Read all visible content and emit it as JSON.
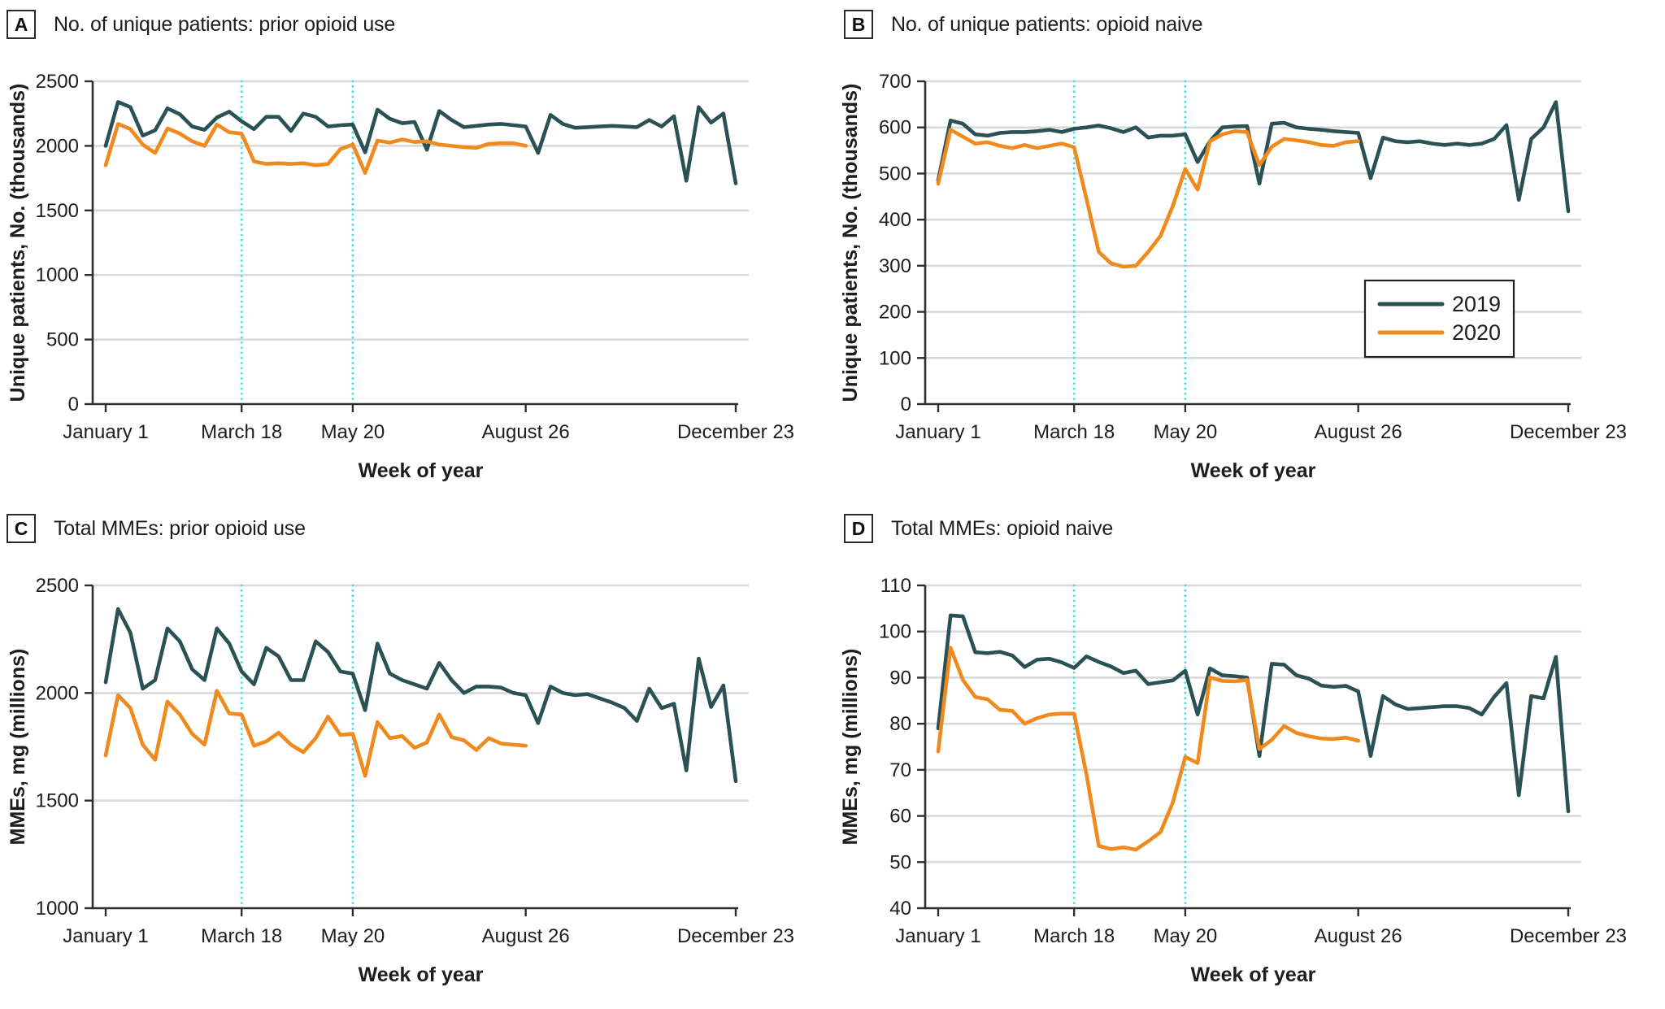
{
  "figure": {
    "x_axis_label": "Week of year",
    "legend": {
      "position": "panel-B-lower-right",
      "entries": [
        {
          "label": "2019",
          "color": "#2A5154"
        },
        {
          "label": "2020",
          "color": "#F08A1E"
        }
      ]
    },
    "colors": {
      "series_2019": "#2A5154",
      "series_2020": "#F08A1E",
      "event_vline": "#44E3E3",
      "gridline": "#D8D8D8",
      "axis": "#2F2F2F",
      "text": "#1D1D1D"
    }
  },
  "chart_data": [
    {
      "type": "line",
      "panel_label": "A",
      "title": "No. of unique patients: prior opioid use",
      "xlabel": "Week of year",
      "ylabel": "Unique patients, No. (thousands)",
      "ylim": [
        0,
        2500
      ],
      "y_ticks": [
        0,
        500,
        1000,
        1500,
        2000,
        2500
      ],
      "x_ticks": [
        {
          "week": 1,
          "label": "January 1"
        },
        {
          "week": 12,
          "label": "March 18"
        },
        {
          "week": 21,
          "label": "May 20"
        },
        {
          "week": 35,
          "label": "August 26"
        },
        {
          "week": 52,
          "label": "December 23"
        }
      ],
      "vlines_weeks": [
        12,
        21
      ],
      "grid": true,
      "legend": false,
      "series": [
        {
          "name": "2019",
          "color": "#2A5154",
          "values": [
            2000,
            2340,
            2300,
            2080,
            2120,
            2290,
            2245,
            2150,
            2125,
            2220,
            2265,
            2190,
            2130,
            2225,
            2225,
            2115,
            2250,
            2225,
            2150,
            2160,
            2165,
            1950,
            2280,
            2210,
            2175,
            2185,
            1970,
            2270,
            2200,
            2145,
            2155,
            2165,
            2170,
            2160,
            2150,
            1945,
            2240,
            2170,
            2140,
            2145,
            2150,
            2155,
            2150,
            2145,
            2200,
            2150,
            2230,
            1730,
            2300,
            2180,
            2250,
            1710
          ]
        },
        {
          "name": "2020",
          "color": "#F08A1E",
          "values": [
            1850,
            2170,
            2130,
            2010,
            1945,
            2135,
            2095,
            2035,
            2000,
            2165,
            2105,
            2095,
            1880,
            1860,
            1865,
            1860,
            1865,
            1850,
            1860,
            1975,
            2010,
            1790,
            2040,
            2025,
            2050,
            2030,
            2035,
            2010,
            2000,
            1990,
            1985,
            2015,
            2020,
            2020,
            2000
          ]
        }
      ]
    },
    {
      "type": "line",
      "panel_label": "B",
      "title": "No. of unique patients: opioid naive",
      "xlabel": "Week of year",
      "ylabel": "Unique patients, No. (thousands)",
      "ylim": [
        0,
        700
      ],
      "y_ticks": [
        0,
        100,
        200,
        300,
        400,
        500,
        600,
        700
      ],
      "x_ticks": [
        {
          "week": 1,
          "label": "January 1"
        },
        {
          "week": 12,
          "label": "March 18"
        },
        {
          "week": 21,
          "label": "May 20"
        },
        {
          "week": 35,
          "label": "August 26"
        },
        {
          "week": 52,
          "label": "December 23"
        }
      ],
      "vlines_weeks": [
        12,
        21
      ],
      "grid": true,
      "legend": true,
      "series": [
        {
          "name": "2019",
          "color": "#2A5154",
          "values": [
            485,
            615,
            608,
            585,
            582,
            588,
            590,
            590,
            592,
            595,
            590,
            597,
            600,
            604,
            598,
            590,
            600,
            578,
            582,
            582,
            585,
            525,
            570,
            600,
            602,
            603,
            478,
            608,
            610,
            600,
            597,
            595,
            592,
            590,
            588,
            490,
            578,
            570,
            568,
            570,
            565,
            562,
            565,
            562,
            565,
            575,
            605,
            443,
            575,
            600,
            655,
            418
          ]
        },
        {
          "name": "2020",
          "color": "#F08A1E",
          "values": [
            478,
            595,
            580,
            565,
            568,
            560,
            555,
            562,
            555,
            560,
            565,
            557,
            445,
            330,
            305,
            298,
            300,
            330,
            365,
            430,
            510,
            465,
            570,
            585,
            592,
            590,
            518,
            558,
            575,
            572,
            568,
            562,
            560,
            568,
            570
          ]
        }
      ]
    },
    {
      "type": "line",
      "panel_label": "C",
      "title": "Total MMEs: prior opioid use",
      "xlabel": "Week of year",
      "ylabel": "MMEs, mg (millions)",
      "ylim": [
        1000,
        2500
      ],
      "y_ticks": [
        1000,
        1500,
        2000,
        2500
      ],
      "x_ticks": [
        {
          "week": 1,
          "label": "January 1"
        },
        {
          "week": 12,
          "label": "March 18"
        },
        {
          "week": 21,
          "label": "May 20"
        },
        {
          "week": 35,
          "label": "August 26"
        },
        {
          "week": 52,
          "label": "December 23"
        }
      ],
      "vlines_weeks": [
        12,
        21
      ],
      "grid": true,
      "legend": false,
      "series": [
        {
          "name": "2019",
          "color": "#2A5154",
          "values": [
            2050,
            2390,
            2280,
            2020,
            2060,
            2300,
            2240,
            2110,
            2060,
            2300,
            2230,
            2100,
            2040,
            2210,
            2170,
            2060,
            2060,
            2240,
            2190,
            2100,
            2090,
            1920,
            2230,
            2090,
            2060,
            2040,
            2020,
            2140,
            2060,
            2000,
            2030,
            2030,
            2025,
            2000,
            1990,
            1860,
            2030,
            2000,
            1990,
            1995,
            1975,
            1955,
            1930,
            1870,
            2020,
            1930,
            1950,
            1640,
            2160,
            1935,
            2035,
            1590
          ]
        },
        {
          "name": "2020",
          "color": "#F08A1E",
          "values": [
            1710,
            1990,
            1930,
            1760,
            1690,
            1960,
            1900,
            1810,
            1760,
            2010,
            1905,
            1900,
            1755,
            1775,
            1815,
            1760,
            1725,
            1790,
            1890,
            1805,
            1810,
            1615,
            1865,
            1790,
            1800,
            1745,
            1770,
            1900,
            1795,
            1780,
            1735,
            1790,
            1765,
            1760,
            1755
          ]
        }
      ]
    },
    {
      "type": "line",
      "panel_label": "D",
      "title": "Total MMEs: opioid naive",
      "xlabel": "Week of year",
      "ylabel": "MMEs, mg (millions)",
      "ylim": [
        40,
        110
      ],
      "y_ticks": [
        40,
        50,
        60,
        70,
        80,
        90,
        100,
        110
      ],
      "x_ticks": [
        {
          "week": 1,
          "label": "January 1"
        },
        {
          "week": 12,
          "label": "March 18"
        },
        {
          "week": 21,
          "label": "May 20"
        },
        {
          "week": 35,
          "label": "August 26"
        },
        {
          "week": 52,
          "label": "December 23"
        }
      ],
      "vlines_weeks": [
        12,
        21
      ],
      "grid": true,
      "legend": false,
      "series": [
        {
          "name": "2019",
          "color": "#2A5154",
          "values": [
            79,
            103.5,
            103.3,
            95.5,
            95.3,
            95.6,
            94.8,
            92.3,
            93.9,
            94.1,
            93.3,
            92.1,
            94.6,
            93.4,
            92.4,
            91.0,
            91.5,
            88.6,
            89.0,
            89.4,
            91.5,
            82.0,
            92.0,
            90.5,
            90.3,
            90.0,
            73.0,
            93.0,
            92.8,
            90.5,
            89.8,
            88.3,
            88.0,
            88.2,
            87.0,
            73.0,
            86.0,
            84.2,
            83.2,
            83.4,
            83.6,
            83.8,
            83.8,
            83.4,
            82.0,
            85.8,
            88.8,
            64.5,
            86.0,
            85.5,
            94.5,
            61.0
          ]
        },
        {
          "name": "2020",
          "color": "#F08A1E",
          "values": [
            74,
            96.5,
            89.5,
            85.8,
            85.3,
            83.0,
            82.8,
            80.0,
            81.2,
            82.0,
            82.2,
            82.2,
            69.0,
            53.5,
            52.8,
            53.2,
            52.7,
            54.5,
            56.5,
            63.0,
            72.8,
            71.5,
            90.0,
            89.3,
            89.2,
            89.5,
            74.5,
            76.5,
            79.5,
            78.0,
            77.3,
            76.8,
            76.7,
            77.0,
            76.3
          ]
        }
      ]
    }
  ]
}
